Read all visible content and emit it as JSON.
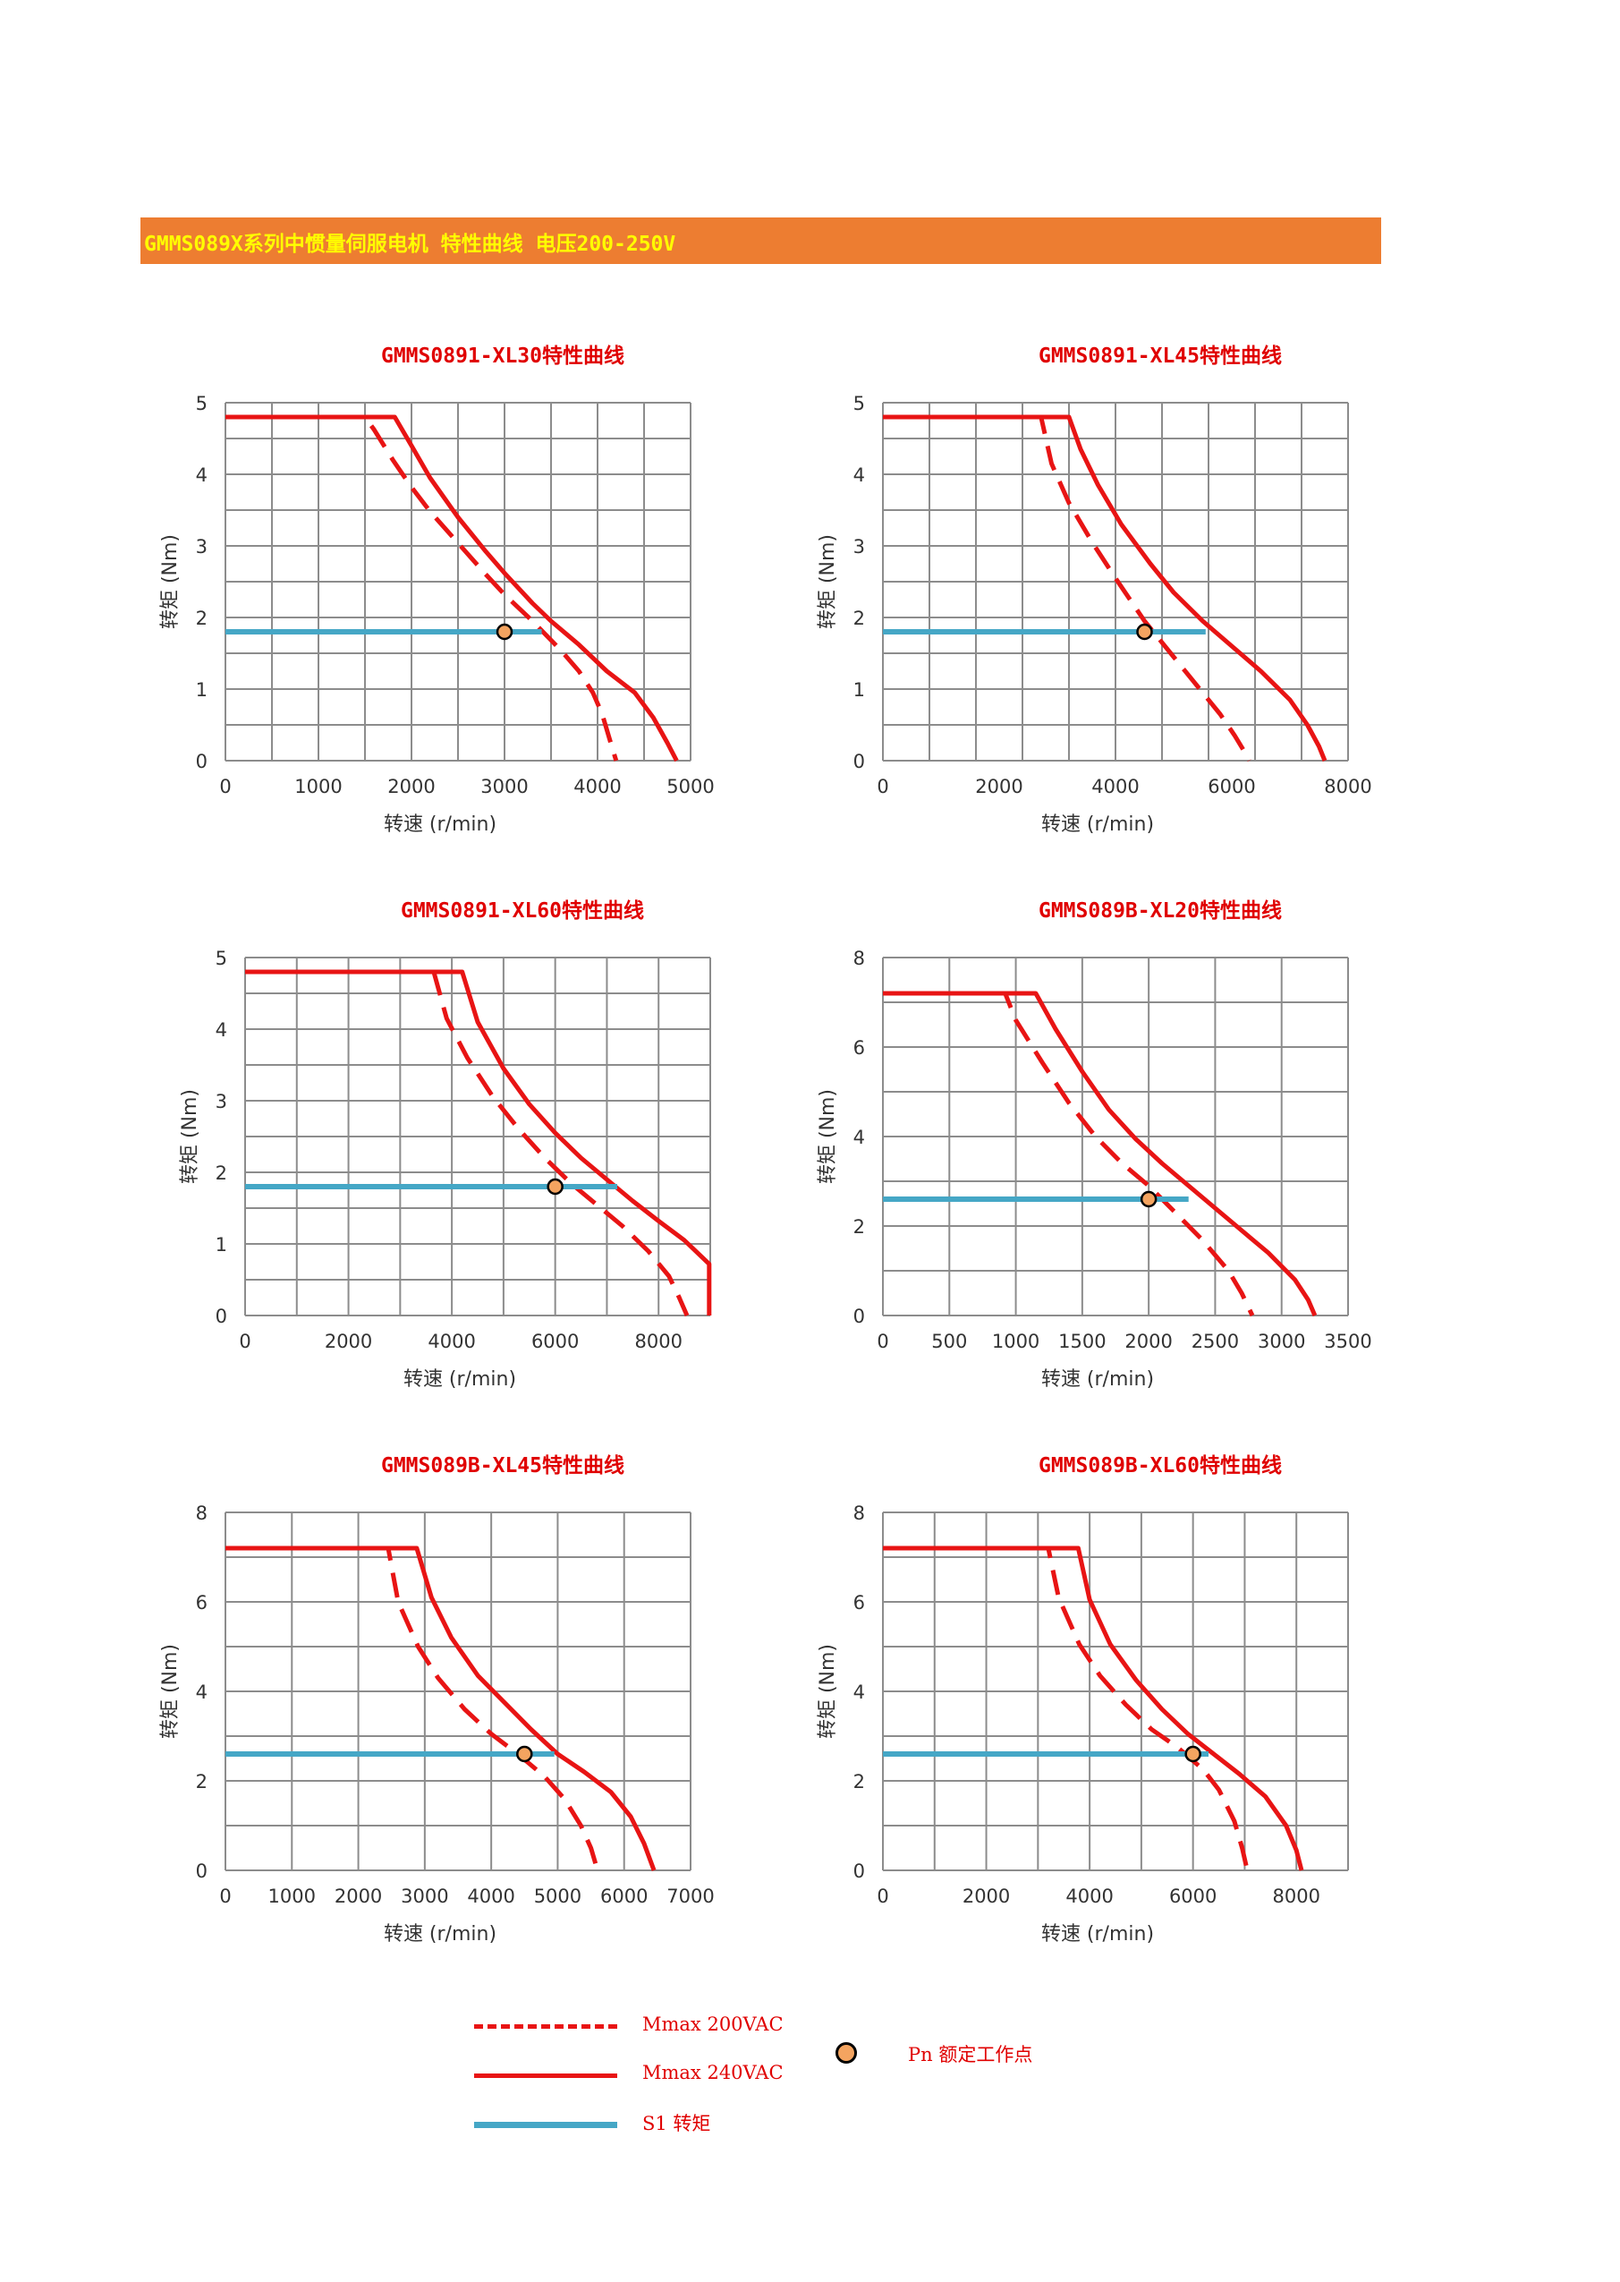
{
  "banner": {
    "text": "GMMS089X系列中惯量伺服电机 特性曲线 电压200-250V",
    "bg_color": "#ed7d31",
    "text_color": "#ffff00"
  },
  "colors": {
    "curve": "#e81414",
    "s1": "#45a7c6",
    "point_fill": "#f4a460",
    "grid": "#8c8c8c"
  },
  "chart_data": [
    {
      "type": "line",
      "title": "GMMS0891-XL30特性曲线",
      "xlabel": "转速 (r/min)",
      "ylabel": "转矩 (Nm)",
      "xlim": [
        0,
        5000
      ],
      "ylim": [
        0,
        5
      ],
      "xticks": [
        0,
        1000,
        2000,
        3000,
        4000,
        5000
      ],
      "yticks": [
        0,
        1,
        2,
        3,
        4,
        5
      ],
      "xgrid_count": 10,
      "ygrid_count": 10,
      "series": [
        {
          "name": "Mmax 200VAC",
          "style": "dashed",
          "x": [
            0,
            1500,
            1600,
            1800,
            2000,
            2200,
            2500,
            2800,
            3000,
            3300,
            3600,
            3800,
            3950,
            4050,
            4130,
            4200
          ],
          "y": [
            4.8,
            4.8,
            4.62,
            4.2,
            3.82,
            3.48,
            3.04,
            2.6,
            2.32,
            1.95,
            1.55,
            1.25,
            0.95,
            0.65,
            0.3,
            0
          ]
        },
        {
          "name": "Mmax 240VAC",
          "style": "solid",
          "x": [
            0,
            1820,
            2000,
            2200,
            2500,
            2800,
            3000,
            3300,
            3500,
            3800,
            4100,
            4400,
            4600,
            4750,
            4850
          ],
          "y": [
            4.8,
            4.8,
            4.4,
            3.95,
            3.4,
            2.92,
            2.62,
            2.2,
            1.95,
            1.62,
            1.25,
            0.95,
            0.6,
            0.25,
            0
          ]
        },
        {
          "name": "S1 转矩",
          "style": "s1",
          "x": [
            0,
            3400
          ],
          "y": [
            1.8,
            1.8
          ]
        }
      ],
      "point": {
        "name": "Pn 额定工作点",
        "x": 3000,
        "y": 1.8
      }
    },
    {
      "type": "line",
      "title": "GMMS0891-XL45特性曲线",
      "xlabel": "转速 (r/min)",
      "ylabel": "转矩 (Nm)",
      "xlim": [
        0,
        8000
      ],
      "ylim": [
        0,
        5
      ],
      "xticks": [
        0,
        2000,
        4000,
        6000,
        8000
      ],
      "yticks": [
        0,
        1,
        2,
        3,
        4,
        5
      ],
      "xgrid_count": 10,
      "ygrid_count": 10,
      "series": [
        {
          "name": "Mmax 200VAC",
          "style": "dashed",
          "x": [
            0,
            2720,
            2900,
            3200,
            3600,
            4000,
            4500,
            5000,
            5400,
            5800,
            6050,
            6200,
            6300
          ],
          "y": [
            4.8,
            4.8,
            4.15,
            3.6,
            3.05,
            2.55,
            1.95,
            1.45,
            1.05,
            0.65,
            0.35,
            0.15,
            0
          ]
        },
        {
          "name": "Mmax 240VAC",
          "style": "solid",
          "x": [
            0,
            3200,
            3400,
            3700,
            4100,
            4600,
            5000,
            5500,
            6000,
            6500,
            7000,
            7300,
            7500,
            7600
          ],
          "y": [
            4.8,
            4.8,
            4.35,
            3.85,
            3.3,
            2.75,
            2.35,
            1.95,
            1.6,
            1.25,
            0.85,
            0.5,
            0.2,
            0
          ]
        },
        {
          "name": "S1 转矩",
          "style": "s1",
          "x": [
            0,
            5550
          ],
          "y": [
            1.8,
            1.8
          ]
        }
      ],
      "point": {
        "name": "Pn 额定工作点",
        "x": 4500,
        "y": 1.8
      }
    },
    {
      "type": "line",
      "title": "GMMS0891-XL60特性曲线",
      "xlabel": "转速 (r/min)",
      "ylabel": "转矩 (Nm)",
      "xlim": [
        0,
        9000
      ],
      "ylim": [
        0,
        5
      ],
      "xticks": [
        0,
        2000,
        4000,
        6000,
        8000
      ],
      "yticks": [
        0,
        1,
        2,
        3,
        4,
        5
      ],
      "xgrid_count": 9,
      "ygrid_count": 10,
      "series": [
        {
          "name": "Mmax 200VAC",
          "style": "dashed",
          "x": [
            0,
            3650,
            3900,
            4300,
            4800,
            5300,
            5800,
            6300,
            6800,
            7300,
            7800,
            8200,
            8400,
            8550
          ],
          "y": [
            4.8,
            4.8,
            4.15,
            3.6,
            3.05,
            2.6,
            2.2,
            1.85,
            1.55,
            1.25,
            0.9,
            0.55,
            0.25,
            0
          ]
        },
        {
          "name": "Mmax 240VAC",
          "style": "solid",
          "x": [
            0,
            4200,
            4500,
            5000,
            5500,
            6000,
            6500,
            7000,
            7500,
            8000,
            8500,
            8980,
            8980
          ],
          "y": [
            4.8,
            4.8,
            4.1,
            3.45,
            2.95,
            2.55,
            2.2,
            1.9,
            1.6,
            1.32,
            1.05,
            0.72,
            0
          ]
        },
        {
          "name": "S1 转矩",
          "style": "s1",
          "x": [
            0,
            7200
          ],
          "y": [
            1.8,
            1.8
          ]
        }
      ],
      "point": {
        "name": "Pn 额定工作点",
        "x": 6000,
        "y": 1.8
      }
    },
    {
      "type": "line",
      "title": "GMMS089B-XL20特性曲线",
      "xlabel": "转速 (r/min)",
      "ylabel": "转矩 (Nm)",
      "xlim": [
        0,
        3500
      ],
      "ylim": [
        0,
        8
      ],
      "xticks": [
        0,
        500,
        1000,
        1500,
        2000,
        2500,
        3000,
        3500
      ],
      "yticks": [
        0,
        2,
        4,
        6,
        8
      ],
      "xgrid_count": 7,
      "ygrid_count": 8,
      "series": [
        {
          "name": "Mmax 200VAC",
          "style": "dashed",
          "x": [
            0,
            920,
            1000,
            1200,
            1400,
            1600,
            1800,
            2000,
            2200,
            2400,
            2600,
            2700,
            2780
          ],
          "y": [
            7.2,
            7.2,
            6.6,
            5.65,
            4.75,
            4.0,
            3.4,
            2.9,
            2.3,
            1.7,
            1.0,
            0.5,
            0
          ]
        },
        {
          "name": "Mmax 240VAC",
          "style": "solid",
          "x": [
            0,
            1150,
            1300,
            1500,
            1700,
            1900,
            2100,
            2300,
            2500,
            2700,
            2900,
            3100,
            3200,
            3250
          ],
          "y": [
            7.2,
            7.2,
            6.4,
            5.45,
            4.6,
            3.95,
            3.4,
            2.9,
            2.4,
            1.9,
            1.4,
            0.8,
            0.35,
            0
          ]
        },
        {
          "name": "S1 转矩",
          "style": "s1",
          "x": [
            0,
            2300
          ],
          "y": [
            2.6,
            2.6
          ]
        }
      ],
      "point": {
        "name": "Pn 额定工作点",
        "x": 2000,
        "y": 2.6
      }
    },
    {
      "type": "line",
      "title": "GMMS089B-XL45特性曲线",
      "xlabel": "转速 (r/min)",
      "ylabel": "转矩 (Nm)",
      "xlim": [
        0,
        7000
      ],
      "ylim": [
        0,
        8
      ],
      "xticks": [
        0,
        1000,
        2000,
        3000,
        4000,
        5000,
        6000,
        7000
      ],
      "yticks": [
        0,
        2,
        4,
        6,
        8
      ],
      "xgrid_count": 7,
      "ygrid_count": 8,
      "series": [
        {
          "name": "Mmax 200VAC",
          "style": "dashed",
          "x": [
            0,
            2450,
            2600,
            2900,
            3200,
            3600,
            4000,
            4400,
            4800,
            5100,
            5350,
            5500,
            5600
          ],
          "y": [
            7.2,
            7.2,
            6.0,
            5.0,
            4.3,
            3.6,
            3.05,
            2.6,
            2.1,
            1.6,
            1.0,
            0.5,
            0
          ]
        },
        {
          "name": "Mmax 240VAC",
          "style": "solid",
          "x": [
            0,
            2880,
            3100,
            3400,
            3800,
            4200,
            4600,
            5000,
            5400,
            5800,
            6100,
            6300,
            6450
          ],
          "y": [
            7.2,
            7.2,
            6.1,
            5.2,
            4.35,
            3.75,
            3.15,
            2.6,
            2.2,
            1.75,
            1.2,
            0.6,
            0
          ]
        },
        {
          "name": "S1 转矩",
          "style": "s1",
          "x": [
            0,
            4950
          ],
          "y": [
            2.6,
            2.6
          ]
        }
      ],
      "point": {
        "name": "Pn 额定工作点",
        "x": 4500,
        "y": 2.6
      }
    },
    {
      "type": "line",
      "title": "GMMS089B-XL60特性曲线",
      "xlabel": "转速 (r/min)",
      "ylabel": "转矩 (Nm)",
      "xlim": [
        0,
        9000
      ],
      "ylim": [
        0,
        8
      ],
      "xticks": [
        0,
        2000,
        4000,
        6000,
        8000
      ],
      "yticks": [
        0,
        2,
        4,
        6,
        8
      ],
      "xgrid_count": 9,
      "ygrid_count": 8,
      "series": [
        {
          "name": "Mmax 200VAC",
          "style": "dashed",
          "x": [
            0,
            3200,
            3400,
            3800,
            4200,
            4700,
            5200,
            5700,
            6200,
            6500,
            6800,
            6950,
            7050
          ],
          "y": [
            7.2,
            7.2,
            6.1,
            5.05,
            4.35,
            3.7,
            3.15,
            2.75,
            2.25,
            1.8,
            1.1,
            0.5,
            0
          ]
        },
        {
          "name": "Mmax 240VAC",
          "style": "solid",
          "x": [
            0,
            3780,
            4000,
            4400,
            4900,
            5400,
            5900,
            6400,
            6900,
            7400,
            7800,
            8000,
            8100
          ],
          "y": [
            7.2,
            7.2,
            6.05,
            5.05,
            4.25,
            3.6,
            3.05,
            2.6,
            2.15,
            1.65,
            1.0,
            0.45,
            0
          ]
        },
        {
          "name": "S1 转矩",
          "style": "s1",
          "x": [
            0,
            6300
          ],
          "y": [
            2.6,
            2.6
          ]
        }
      ],
      "point": {
        "name": "Pn 额定工作点",
        "x": 6000,
        "y": 2.6
      }
    }
  ],
  "legend": {
    "dashed_label": "Mmax 200VAC",
    "solid_label": "Mmax 240VAC",
    "s1_label": "S1 转矩",
    "point_label": "Pn 额定工作点"
  }
}
